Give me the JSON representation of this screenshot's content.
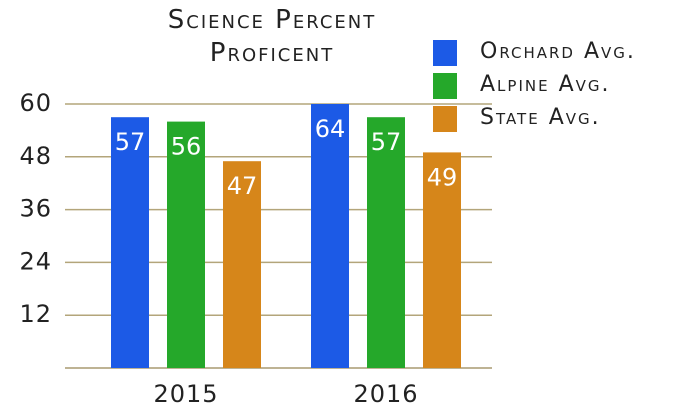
{
  "chart_data": {
    "type": "bar",
    "title": "Science Percent Proficent",
    "categories": [
      "2015",
      "2016"
    ],
    "series": [
      {
        "name": "Orchard Avg.",
        "color": "#1c5ae6",
        "values": [
          57,
          64
        ]
      },
      {
        "name": "Alpine Avg.",
        "color": "#25a82a",
        "values": [
          56,
          57
        ]
      },
      {
        "name": "State Avg.",
        "color": "#d6861a",
        "values": [
          47,
          49
        ]
      }
    ],
    "ylim": [
      0,
      60
    ],
    "yticks": [
      12,
      24,
      36,
      48,
      60
    ],
    "grid": true,
    "legend": "upper right"
  }
}
